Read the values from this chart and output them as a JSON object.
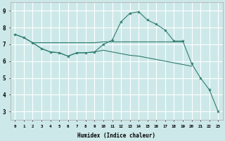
{
  "xlabel": "Humidex (Indice chaleur)",
  "background_color": "#cde8e8",
  "grid_color": "#ffffff",
  "line_color": "#2e7d6e",
  "xlim": [
    -0.5,
    23.5
  ],
  "ylim": [
    2.5,
    9.5
  ],
  "xtick_labels": [
    "0",
    "1",
    "2",
    "3",
    "4",
    "5",
    "6",
    "7",
    "8",
    "9",
    "10",
    "11",
    "12",
    "13",
    "14",
    "15",
    "16",
    "17",
    "18",
    "19",
    "20",
    "21",
    "22",
    "23"
  ],
  "ytick_labels": [
    "3",
    "4",
    "5",
    "6",
    "7",
    "8",
    "9"
  ],
  "series": [
    {
      "x": [
        0,
        1,
        2,
        3,
        4,
        5,
        6,
        7,
        8,
        9,
        10,
        11,
        12,
        13,
        14,
        15,
        16,
        17,
        18,
        19
      ],
      "y": [
        7.6,
        7.4,
        7.1,
        7.1,
        7.1,
        7.1,
        7.1,
        7.1,
        7.1,
        7.1,
        7.15,
        7.15,
        7.15,
        7.15,
        7.15,
        7.15,
        7.15,
        7.15,
        7.15,
        7.15
      ],
      "marker": false
    },
    {
      "x": [
        0,
        1,
        2,
        3,
        4,
        5,
        6,
        7,
        8,
        9,
        10,
        11,
        12,
        13,
        14,
        15,
        16,
        17,
        18,
        19,
        20,
        21,
        22,
        23
      ],
      "y": [
        7.6,
        7.4,
        7.1,
        6.75,
        6.55,
        6.5,
        6.3,
        6.5,
        6.5,
        6.55,
        7.0,
        7.25,
        8.35,
        8.85,
        8.95,
        8.45,
        8.2,
        7.85,
        7.2,
        7.2,
        5.85,
        5.0,
        4.3,
        3.0
      ],
      "marker": true
    },
    {
      "x": [
        2,
        3,
        4,
        5,
        6,
        7,
        8,
        9,
        10,
        11,
        12,
        13,
        14,
        15,
        16,
        17,
        18,
        19,
        20
      ],
      "y": [
        7.1,
        6.75,
        6.55,
        6.5,
        6.3,
        6.5,
        6.5,
        6.55,
        6.65,
        6.55,
        6.45,
        6.35,
        6.3,
        6.2,
        6.1,
        6.0,
        5.9,
        5.8,
        5.7
      ],
      "marker": false
    }
  ]
}
